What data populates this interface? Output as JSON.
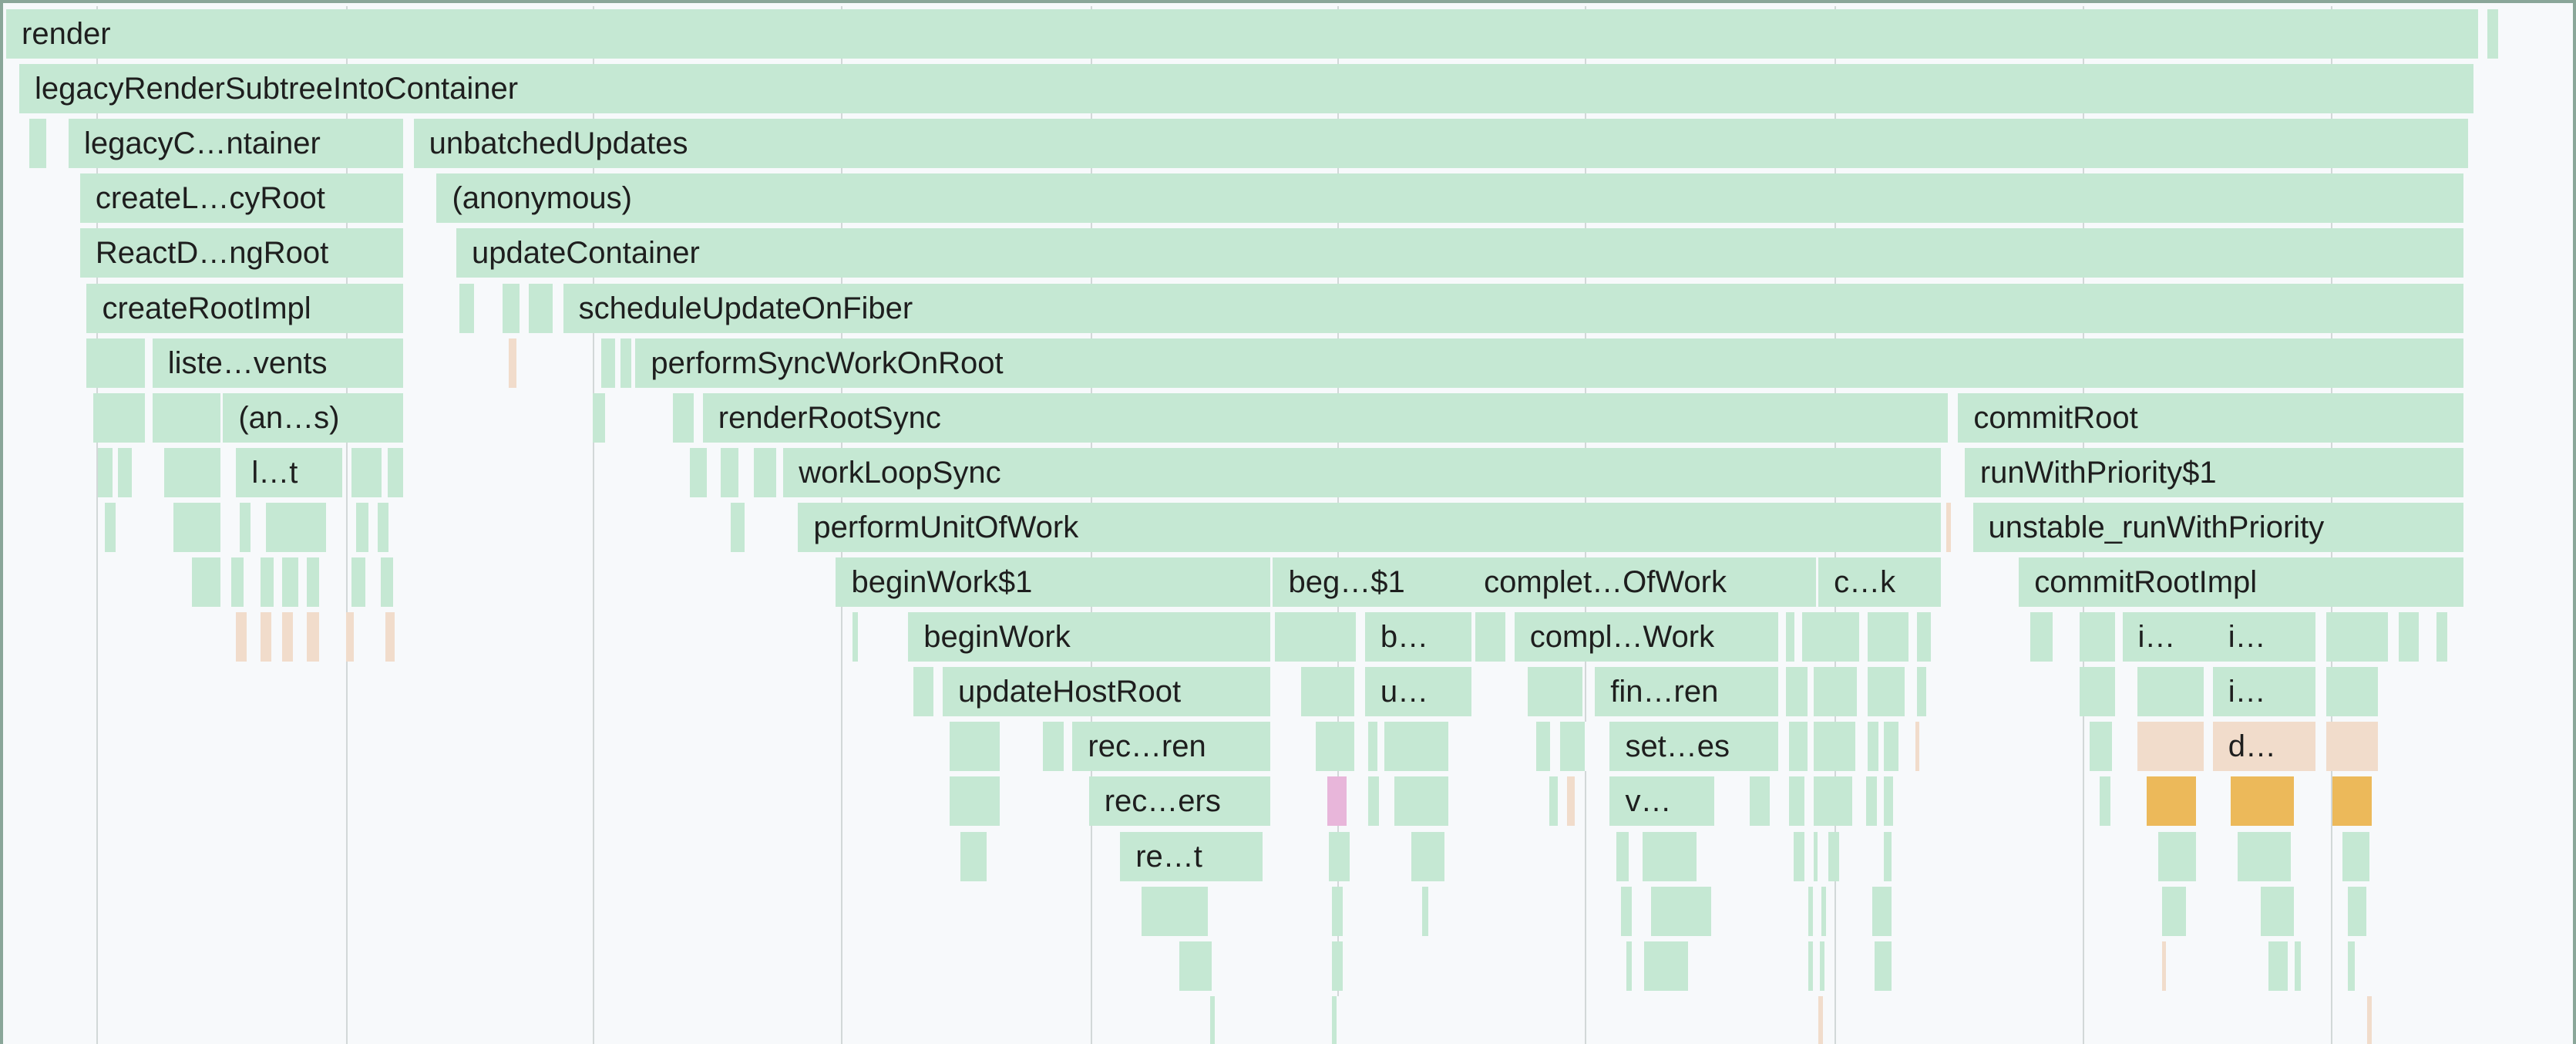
{
  "flamegraph": {
    "frames": [
      {
        "label": "render",
        "depth": 0,
        "start": 0,
        "end": 1506,
        "color": "green"
      },
      {
        "label": "legacyRenderSubtreeIntoContainer",
        "depth": 1,
        "start": 8,
        "end": 1503,
        "color": "green"
      },
      {
        "label": "legacyC…ntainer",
        "depth": 2,
        "start": 38,
        "end": 243,
        "color": "green"
      },
      {
        "label": "unbatchedUpdates",
        "depth": 2,
        "start": 248,
        "end": 1500,
        "color": "green"
      },
      {
        "label": "createL…cyRoot",
        "depth": 3,
        "start": 45,
        "end": 243,
        "color": "green"
      },
      {
        "label": "(anonymous)",
        "depth": 3,
        "start": 262,
        "end": 1497,
        "color": "green"
      },
      {
        "label": "ReactD…ngRoot",
        "depth": 4,
        "start": 45,
        "end": 243,
        "color": "green"
      },
      {
        "label": "updateContainer",
        "depth": 4,
        "start": 274,
        "end": 1497,
        "color": "green"
      },
      {
        "label": "createRootImpl",
        "depth": 5,
        "start": 49,
        "end": 243,
        "color": "green"
      },
      {
        "label": "scheduleUpdateOnFiber",
        "depth": 5,
        "start": 339,
        "end": 1497,
        "color": "green"
      },
      {
        "label": "liste…vents",
        "depth": 6,
        "start": 89,
        "end": 243,
        "color": "green"
      },
      {
        "label": "performSyncWorkOnRoot",
        "depth": 6,
        "start": 383,
        "end": 1497,
        "color": "green"
      },
      {
        "label": "(an…s)",
        "depth": 7,
        "start": 132,
        "end": 243,
        "color": "green"
      },
      {
        "label": "renderRootSync",
        "depth": 7,
        "start": 424,
        "end": 1183,
        "color": "green"
      },
      {
        "label": "commitRoot",
        "depth": 7,
        "start": 1188,
        "end": 1497,
        "color": "green"
      },
      {
        "label": "l…t",
        "depth": 8,
        "start": 140,
        "end": 206,
        "color": "green"
      },
      {
        "label": "workLoopSync",
        "depth": 8,
        "start": 473,
        "end": 1179,
        "color": "green"
      },
      {
        "label": "runWithPriority$1",
        "depth": 8,
        "start": 1192,
        "end": 1497,
        "color": "green"
      },
      {
        "label": "performUnitOfWork",
        "depth": 9,
        "start": 482,
        "end": 1179,
        "color": "green"
      },
      {
        "label": "unstable_runWithPriority",
        "depth": 9,
        "start": 1197,
        "end": 1497,
        "color": "green"
      },
      {
        "label": "beginWork$1",
        "depth": 10,
        "start": 505,
        "end": 771,
        "color": "green"
      },
      {
        "label": "beg…$1",
        "depth": 10,
        "start": 771,
        "end": 893,
        "color": "green"
      },
      {
        "label": "complet…OfWork",
        "depth": 10,
        "start": 890,
        "end": 1103,
        "color": "green"
      },
      {
        "label": "c…k",
        "depth": 10,
        "start": 1103,
        "end": 1179,
        "color": "green"
      },
      {
        "label": "commitRootImpl",
        "depth": 10,
        "start": 1225,
        "end": 1497,
        "color": "green"
      },
      {
        "label": "beginWork",
        "depth": 11,
        "start": 549,
        "end": 771,
        "color": "green"
      },
      {
        "label": "b…",
        "depth": 11,
        "start": 827,
        "end": 893,
        "color": "green"
      },
      {
        "label": "compl…Work",
        "depth": 11,
        "start": 918,
        "end": 1080,
        "color": "green"
      },
      {
        "label": "i…",
        "depth": 11,
        "start": 1288,
        "end": 1348,
        "color": "green"
      },
      {
        "label": "i…",
        "depth": 11,
        "start": 1343,
        "end": 1407,
        "color": "green"
      },
      {
        "label": "updateHostRoot",
        "depth": 12,
        "start": 570,
        "end": 771,
        "color": "green"
      },
      {
        "label": "u…",
        "depth": 12,
        "start": 827,
        "end": 893,
        "color": "green"
      },
      {
        "label": "fin…ren",
        "depth": 12,
        "start": 967,
        "end": 1080,
        "color": "green"
      },
      {
        "label": "i…",
        "depth": 12,
        "start": 1343,
        "end": 1407,
        "color": "green"
      },
      {
        "label": "rec…ren",
        "depth": 13,
        "start": 649,
        "end": 771,
        "color": "green"
      },
      {
        "label": "set…es",
        "depth": 13,
        "start": 976,
        "end": 1080,
        "color": "green"
      },
      {
        "label": "d…",
        "depth": 13,
        "start": 1343,
        "end": 1407,
        "color": "peach"
      },
      {
        "label": "rec…ers",
        "depth": 14,
        "start": 659,
        "end": 771,
        "color": "green"
      },
      {
        "label": "v…",
        "depth": 14,
        "start": 976,
        "end": 1041,
        "color": "green"
      },
      {
        "label": "re…t",
        "depth": 15,
        "start": 678,
        "end": 766,
        "color": "green"
      }
    ],
    "slivers": [
      {
        "depth": 0,
        "start": 1510,
        "end": 1518,
        "color": "green"
      },
      {
        "depth": 2,
        "start": 14,
        "end": 26,
        "color": "green"
      },
      {
        "depth": 5,
        "start": 276,
        "end": 286,
        "color": "green"
      },
      {
        "depth": 5,
        "start": 302,
        "end": 314,
        "color": "green"
      },
      {
        "depth": 5,
        "start": 318,
        "end": 334,
        "color": "green"
      },
      {
        "depth": 6,
        "start": 49,
        "end": 86,
        "color": "green"
      },
      {
        "depth": 6,
        "start": 306,
        "end": 312,
        "color": "peach"
      },
      {
        "depth": 6,
        "start": 362,
        "end": 372,
        "color": "green"
      },
      {
        "depth": 6,
        "start": 374,
        "end": 382,
        "color": "green"
      },
      {
        "depth": 7,
        "start": 53,
        "end": 86,
        "color": "green"
      },
      {
        "depth": 7,
        "start": 89,
        "end": 132,
        "color": "green"
      },
      {
        "depth": 7,
        "start": 357,
        "end": 366,
        "color": "green"
      },
      {
        "depth": 7,
        "start": 406,
        "end": 420,
        "color": "green"
      },
      {
        "depth": 8,
        "start": 56,
        "end": 66,
        "color": "green"
      },
      {
        "depth": 8,
        "start": 68,
        "end": 78,
        "color": "green"
      },
      {
        "depth": 8,
        "start": 96,
        "end": 132,
        "color": "green"
      },
      {
        "depth": 8,
        "start": 210,
        "end": 230,
        "color": "green"
      },
      {
        "depth": 8,
        "start": 232,
        "end": 243,
        "color": "green"
      },
      {
        "depth": 8,
        "start": 416,
        "end": 428,
        "color": "green"
      },
      {
        "depth": 8,
        "start": 435,
        "end": 447,
        "color": "green"
      },
      {
        "depth": 8,
        "start": 455,
        "end": 470,
        "color": "green"
      },
      {
        "depth": 9,
        "start": 60,
        "end": 68,
        "color": "green"
      },
      {
        "depth": 9,
        "start": 102,
        "end": 132,
        "color": "green"
      },
      {
        "depth": 9,
        "start": 142,
        "end": 150,
        "color": "green"
      },
      {
        "depth": 9,
        "start": 158,
        "end": 196,
        "color": "green"
      },
      {
        "depth": 9,
        "start": 213,
        "end": 222,
        "color": "green"
      },
      {
        "depth": 9,
        "start": 226,
        "end": 234,
        "color": "green"
      },
      {
        "depth": 9,
        "start": 441,
        "end": 451,
        "color": "green"
      },
      {
        "depth": 9,
        "start": 1181,
        "end": 1185,
        "color": "peach"
      },
      {
        "depth": 10,
        "start": 113,
        "end": 132,
        "color": "green"
      },
      {
        "depth": 10,
        "start": 137,
        "end": 146,
        "color": "green"
      },
      {
        "depth": 10,
        "start": 155,
        "end": 164,
        "color": "green"
      },
      {
        "depth": 10,
        "start": 168,
        "end": 179,
        "color": "green"
      },
      {
        "depth": 10,
        "start": 183,
        "end": 192,
        "color": "green"
      },
      {
        "depth": 10,
        "start": 210,
        "end": 220,
        "color": "green"
      },
      {
        "depth": 10,
        "start": 228,
        "end": 237,
        "color": "green"
      },
      {
        "depth": 11,
        "start": 140,
        "end": 148,
        "color": "peach"
      },
      {
        "depth": 11,
        "start": 155,
        "end": 163,
        "color": "peach"
      },
      {
        "depth": 11,
        "start": 168,
        "end": 176,
        "color": "peach"
      },
      {
        "depth": 11,
        "start": 183,
        "end": 192,
        "color": "peach"
      },
      {
        "depth": 11,
        "start": 207,
        "end": 213,
        "color": "peach"
      },
      {
        "depth": 11,
        "start": 231,
        "end": 238,
        "color": "peach"
      },
      {
        "depth": 11,
        "start": 515,
        "end": 520,
        "color": "green"
      },
      {
        "depth": 11,
        "start": 772,
        "end": 823,
        "color": "green"
      },
      {
        "depth": 11,
        "start": 894,
        "end": 914,
        "color": "green"
      },
      {
        "depth": 11,
        "start": 1083,
        "end": 1090,
        "color": "green"
      },
      {
        "depth": 11,
        "start": 1093,
        "end": 1129,
        "color": "green"
      },
      {
        "depth": 11,
        "start": 1133,
        "end": 1159,
        "color": "green"
      },
      {
        "depth": 11,
        "start": 1163,
        "end": 1173,
        "color": "green"
      },
      {
        "depth": 11,
        "start": 1232,
        "end": 1247,
        "color": "green"
      },
      {
        "depth": 11,
        "start": 1262,
        "end": 1285,
        "color": "green"
      },
      {
        "depth": 11,
        "start": 1412,
        "end": 1451,
        "color": "green"
      },
      {
        "depth": 11,
        "start": 1456,
        "end": 1470,
        "color": "green"
      },
      {
        "depth": 11,
        "start": 1479,
        "end": 1487,
        "color": "green"
      },
      {
        "depth": 12,
        "start": 552,
        "end": 566,
        "color": "green"
      },
      {
        "depth": 12,
        "start": 788,
        "end": 822,
        "color": "green"
      },
      {
        "depth": 12,
        "start": 926,
        "end": 961,
        "color": "green"
      },
      {
        "depth": 12,
        "start": 1083,
        "end": 1098,
        "color": "green"
      },
      {
        "depth": 12,
        "start": 1100,
        "end": 1128,
        "color": "green"
      },
      {
        "depth": 12,
        "start": 1133,
        "end": 1157,
        "color": "green"
      },
      {
        "depth": 12,
        "start": 1163,
        "end": 1170,
        "color": "green"
      },
      {
        "depth": 12,
        "start": 1262,
        "end": 1285,
        "color": "green"
      },
      {
        "depth": 12,
        "start": 1297,
        "end": 1339,
        "color": "green"
      },
      {
        "depth": 12,
        "start": 1412,
        "end": 1445,
        "color": "green"
      },
      {
        "depth": 13,
        "start": 574,
        "end": 606,
        "color": "green"
      },
      {
        "depth": 13,
        "start": 631,
        "end": 645,
        "color": "green"
      },
      {
        "depth": 13,
        "start": 797,
        "end": 822,
        "color": "green"
      },
      {
        "depth": 13,
        "start": 829,
        "end": 836,
        "color": "green"
      },
      {
        "depth": 13,
        "start": 839,
        "end": 879,
        "color": "green"
      },
      {
        "depth": 13,
        "start": 931,
        "end": 941,
        "color": "green"
      },
      {
        "depth": 13,
        "start": 946,
        "end": 962,
        "color": "green"
      },
      {
        "depth": 13,
        "start": 1085,
        "end": 1098,
        "color": "green"
      },
      {
        "depth": 13,
        "start": 1100,
        "end": 1127,
        "color": "green"
      },
      {
        "depth": 13,
        "start": 1133,
        "end": 1141,
        "color": "green"
      },
      {
        "depth": 13,
        "start": 1143,
        "end": 1153,
        "color": "green"
      },
      {
        "depth": 13,
        "start": 1162,
        "end": 1166,
        "color": "peach"
      },
      {
        "depth": 13,
        "start": 1268,
        "end": 1283,
        "color": "green"
      },
      {
        "depth": 13,
        "start": 1297,
        "end": 1339,
        "color": "peach"
      },
      {
        "depth": 13,
        "start": 1412,
        "end": 1445,
        "color": "peach"
      },
      {
        "depth": 14,
        "start": 574,
        "end": 606,
        "color": "green"
      },
      {
        "depth": 14,
        "start": 804,
        "end": 817,
        "color": "pink"
      },
      {
        "depth": 14,
        "start": 829,
        "end": 837,
        "color": "green"
      },
      {
        "depth": 14,
        "start": 845,
        "end": 879,
        "color": "green"
      },
      {
        "depth": 14,
        "start": 939,
        "end": 946,
        "color": "green"
      },
      {
        "depth": 14,
        "start": 950,
        "end": 956,
        "color": "peach"
      },
      {
        "depth": 14,
        "start": 1061,
        "end": 1075,
        "color": "green"
      },
      {
        "depth": 14,
        "start": 1085,
        "end": 1096,
        "color": "green"
      },
      {
        "depth": 14,
        "start": 1100,
        "end": 1125,
        "color": "green"
      },
      {
        "depth": 14,
        "start": 1132,
        "end": 1140,
        "color": "green"
      },
      {
        "depth": 14,
        "start": 1143,
        "end": 1150,
        "color": "green"
      },
      {
        "depth": 14,
        "start": 1274,
        "end": 1282,
        "color": "green"
      },
      {
        "depth": 14,
        "start": 1303,
        "end": 1334,
        "color": "gold"
      },
      {
        "depth": 14,
        "start": 1354,
        "end": 1394,
        "color": "gold"
      },
      {
        "depth": 14,
        "start": 1416,
        "end": 1441,
        "color": "gold"
      },
      {
        "depth": 15,
        "start": 581,
        "end": 598,
        "color": "green"
      },
      {
        "depth": 15,
        "start": 805,
        "end": 819,
        "color": "green"
      },
      {
        "depth": 15,
        "start": 855,
        "end": 877,
        "color": "green"
      },
      {
        "depth": 15,
        "start": 980,
        "end": 989,
        "color": "green"
      },
      {
        "depth": 15,
        "start": 996,
        "end": 1030,
        "color": "green"
      },
      {
        "depth": 15,
        "start": 1088,
        "end": 1096,
        "color": "green"
      },
      {
        "depth": 15,
        "start": 1100,
        "end": 1104,
        "color": "green"
      },
      {
        "depth": 15,
        "start": 1109,
        "end": 1117,
        "color": "green"
      },
      {
        "depth": 15,
        "start": 1143,
        "end": 1149,
        "color": "green"
      },
      {
        "depth": 15,
        "start": 1310,
        "end": 1334,
        "color": "green"
      },
      {
        "depth": 15,
        "start": 1358,
        "end": 1392,
        "color": "green"
      },
      {
        "depth": 15,
        "start": 1422,
        "end": 1440,
        "color": "green"
      },
      {
        "depth": 16,
        "start": 691,
        "end": 733,
        "color": "green"
      },
      {
        "depth": 16,
        "start": 807,
        "end": 815,
        "color": "green"
      },
      {
        "depth": 16,
        "start": 862,
        "end": 867,
        "color": "green"
      },
      {
        "depth": 16,
        "start": 983,
        "end": 991,
        "color": "green"
      },
      {
        "depth": 16,
        "start": 1001,
        "end": 1039,
        "color": "green"
      },
      {
        "depth": 16,
        "start": 1097,
        "end": 1101,
        "color": "green"
      },
      {
        "depth": 16,
        "start": 1105,
        "end": 1109,
        "color": "green"
      },
      {
        "depth": 16,
        "start": 1136,
        "end": 1149,
        "color": "green"
      },
      {
        "depth": 16,
        "start": 1312,
        "end": 1328,
        "color": "green"
      },
      {
        "depth": 16,
        "start": 1372,
        "end": 1394,
        "color": "green"
      },
      {
        "depth": 16,
        "start": 1425,
        "end": 1438,
        "color": "green"
      },
      {
        "depth": 17,
        "start": 714,
        "end": 735,
        "color": "green"
      },
      {
        "depth": 17,
        "start": 807,
        "end": 815,
        "color": "green"
      },
      {
        "depth": 17,
        "start": 986,
        "end": 991,
        "color": "green"
      },
      {
        "depth": 17,
        "start": 997,
        "end": 1025,
        "color": "green"
      },
      {
        "depth": 17,
        "start": 1097,
        "end": 1101,
        "color": "green"
      },
      {
        "depth": 17,
        "start": 1104,
        "end": 1108,
        "color": "green"
      },
      {
        "depth": 17,
        "start": 1137,
        "end": 1149,
        "color": "green"
      },
      {
        "depth": 17,
        "start": 1312,
        "end": 1316,
        "color": "peach"
      },
      {
        "depth": 17,
        "start": 1377,
        "end": 1390,
        "color": "green"
      },
      {
        "depth": 17,
        "start": 1393,
        "end": 1398,
        "color": "green"
      },
      {
        "depth": 17,
        "start": 1425,
        "end": 1431,
        "color": "green"
      },
      {
        "depth": 18,
        "start": 733,
        "end": 737,
        "color": "green"
      },
      {
        "depth": 18,
        "start": 807,
        "end": 811,
        "color": "green"
      },
      {
        "depth": 18,
        "start": 1103,
        "end": 1107,
        "color": "peach"
      },
      {
        "depth": 18,
        "start": 1437,
        "end": 1441,
        "color": "peach"
      }
    ],
    "gridlines": [
      55,
      207,
      357,
      508,
      660,
      810,
      961,
      1113,
      1264,
      1415
    ]
  },
  "colors": {
    "green": "#c5e8d3",
    "peach": "#f1dccb",
    "gold": "#ecb95a",
    "pink": "#e8b6da",
    "background": "#f7f9fb",
    "gridline": "#d2d8d8",
    "border": "#8aa699"
  }
}
